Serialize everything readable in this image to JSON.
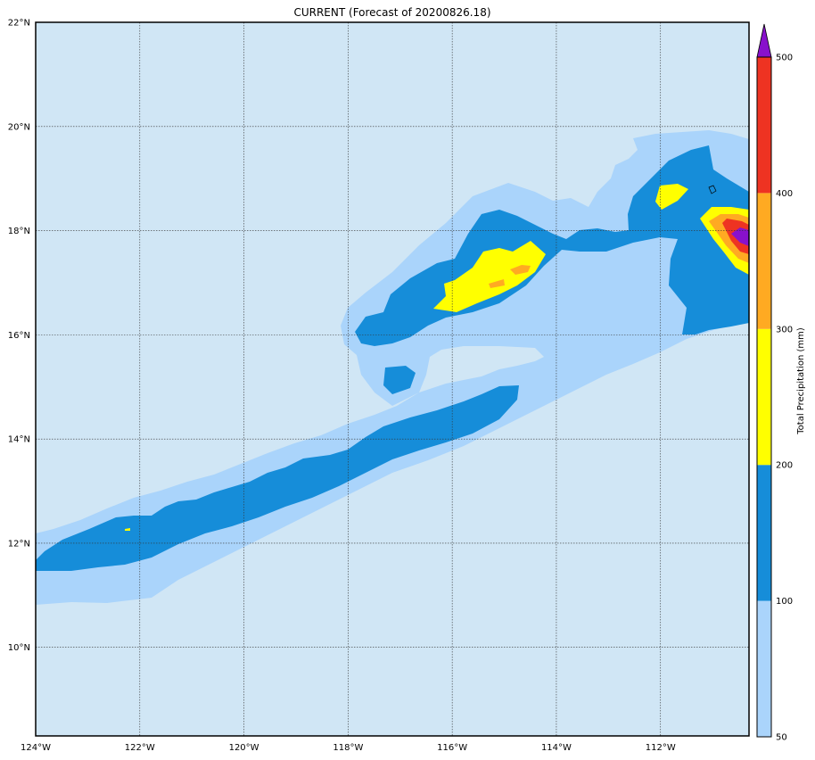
{
  "title": "CURRENT (Forecast of 20200826.18)",
  "map": {
    "lon_range": [
      -124,
      -110.3
    ],
    "lat_range": [
      8.3,
      22
    ],
    "lon_ticks": [
      {
        "value": -124,
        "label": "124°W"
      },
      {
        "value": -122,
        "label": "122°W"
      },
      {
        "value": -120,
        "label": "120°W"
      },
      {
        "value": -118,
        "label": "118°W"
      },
      {
        "value": -116,
        "label": "116°W"
      },
      {
        "value": -114,
        "label": "114°W"
      },
      {
        "value": -112,
        "label": "112°W"
      }
    ],
    "lat_ticks": [
      {
        "value": 22,
        "label": "22°N"
      },
      {
        "value": 20,
        "label": "20°N"
      },
      {
        "value": 18,
        "label": "18°N"
      },
      {
        "value": 16,
        "label": "16°N"
      },
      {
        "value": 14,
        "label": "14°N"
      },
      {
        "value": 12,
        "label": "12°N"
      },
      {
        "value": 10,
        "label": "10°N"
      }
    ],
    "gridlines": true,
    "background_color": "#d0e6f5"
  },
  "colorbar": {
    "title": "Total Precipitation (mm)",
    "levels": [
      {
        "label": "50",
        "color": "#aad4fb"
      },
      {
        "label": "100",
        "color": "#168dd9"
      },
      {
        "label": "200",
        "color": "#ffff00"
      },
      {
        "label": "300",
        "color": "#ffaa22"
      },
      {
        "label": "400",
        "color": "#ee3322"
      }
    ],
    "top_label": "500",
    "extend_color": "#8811cc"
  }
}
